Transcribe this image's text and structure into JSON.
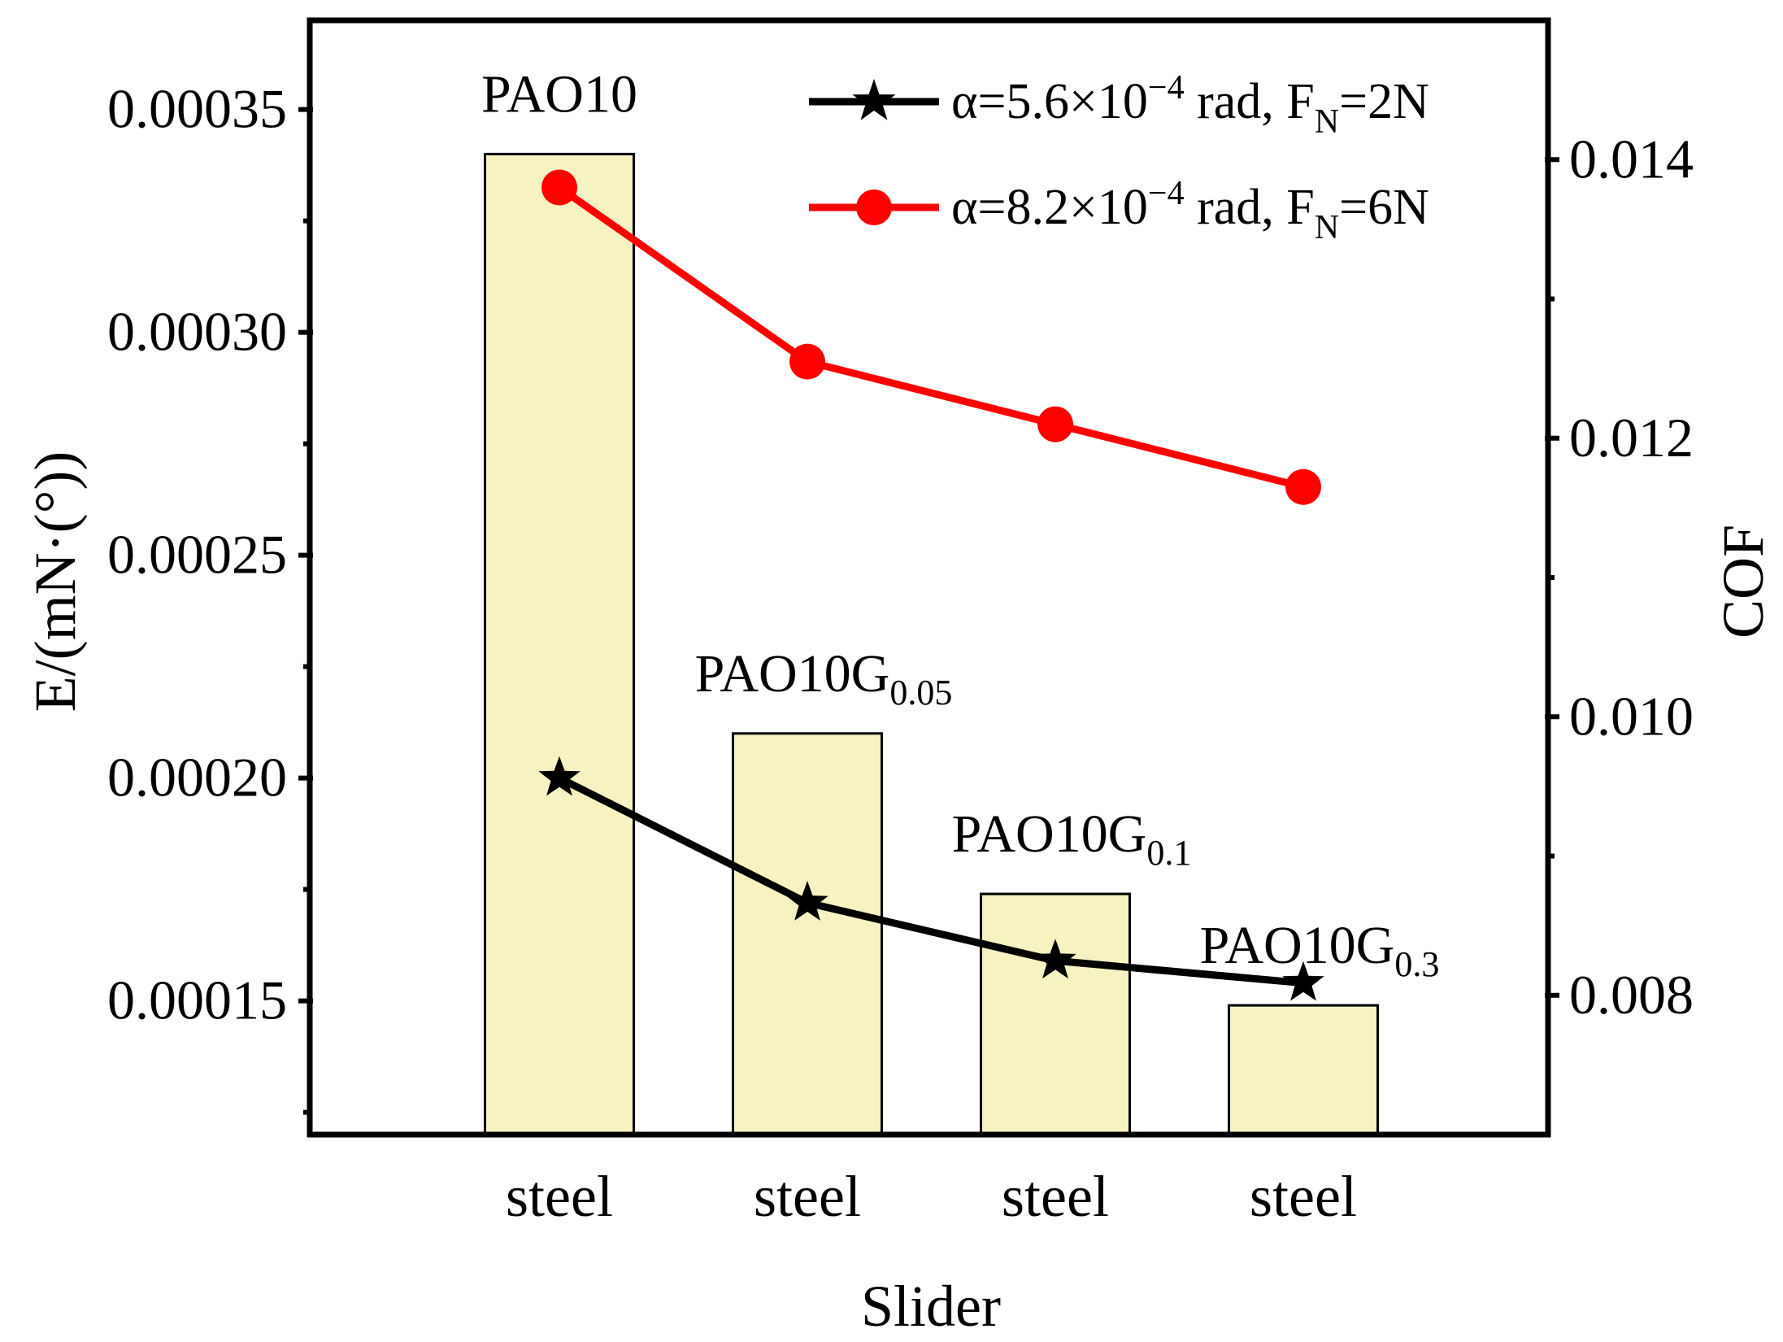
{
  "chart_data": {
    "type": "bar",
    "xlabel": "Slider",
    "ylabel_left": "E/(mN·(°))",
    "ylabel_right": "COF",
    "categories": [
      "steel",
      "steel",
      "steel",
      "steel"
    ],
    "ylim_left": [
      0.00012,
      0.00037
    ],
    "ylim_right": [
      0.007,
      0.015
    ],
    "left_ticks": [
      "0.00015",
      "0.00020",
      "0.00025",
      "0.00030",
      "0.00035"
    ],
    "right_ticks": [
      "0.008",
      "0.010",
      "0.012",
      "0.014"
    ],
    "bars": {
      "name": "E",
      "values": [
        0.00034,
        0.00021,
        0.000174,
        0.000149
      ],
      "labels": [
        {
          "base": "PAO10",
          "sub": ""
        },
        {
          "base": "PAO10G",
          "sub": "0.05"
        },
        {
          "base": "PAO10G",
          "sub": "0.1"
        },
        {
          "base": "PAO10G",
          "sub": "0.3"
        }
      ],
      "color": "#f7f2c2"
    },
    "series": [
      {
        "name": "α=5.6×10−4 rad, FN=2N",
        "legend_prefix": "α=5.6×10",
        "legend_exp": "−4",
        "legend_mid": " rad, F",
        "legend_sub": "N",
        "legend_suffix": "=2N",
        "marker": "star",
        "color": "#000000",
        "values": [
          0.0002,
          0.000172,
          0.000159,
          0.000154
        ]
      },
      {
        "name": "α=8.2×10−4 rad, FN=6N",
        "legend_prefix": "α=8.2×10",
        "legend_exp": "−4",
        "legend_mid": " rad, F",
        "legend_sub": "N",
        "legend_suffix": "=6N",
        "marker": "circle",
        "color": "#ff0000",
        "values": [
          0.0138,
          0.01255,
          0.0121,
          0.01165
        ]
      }
    ]
  }
}
